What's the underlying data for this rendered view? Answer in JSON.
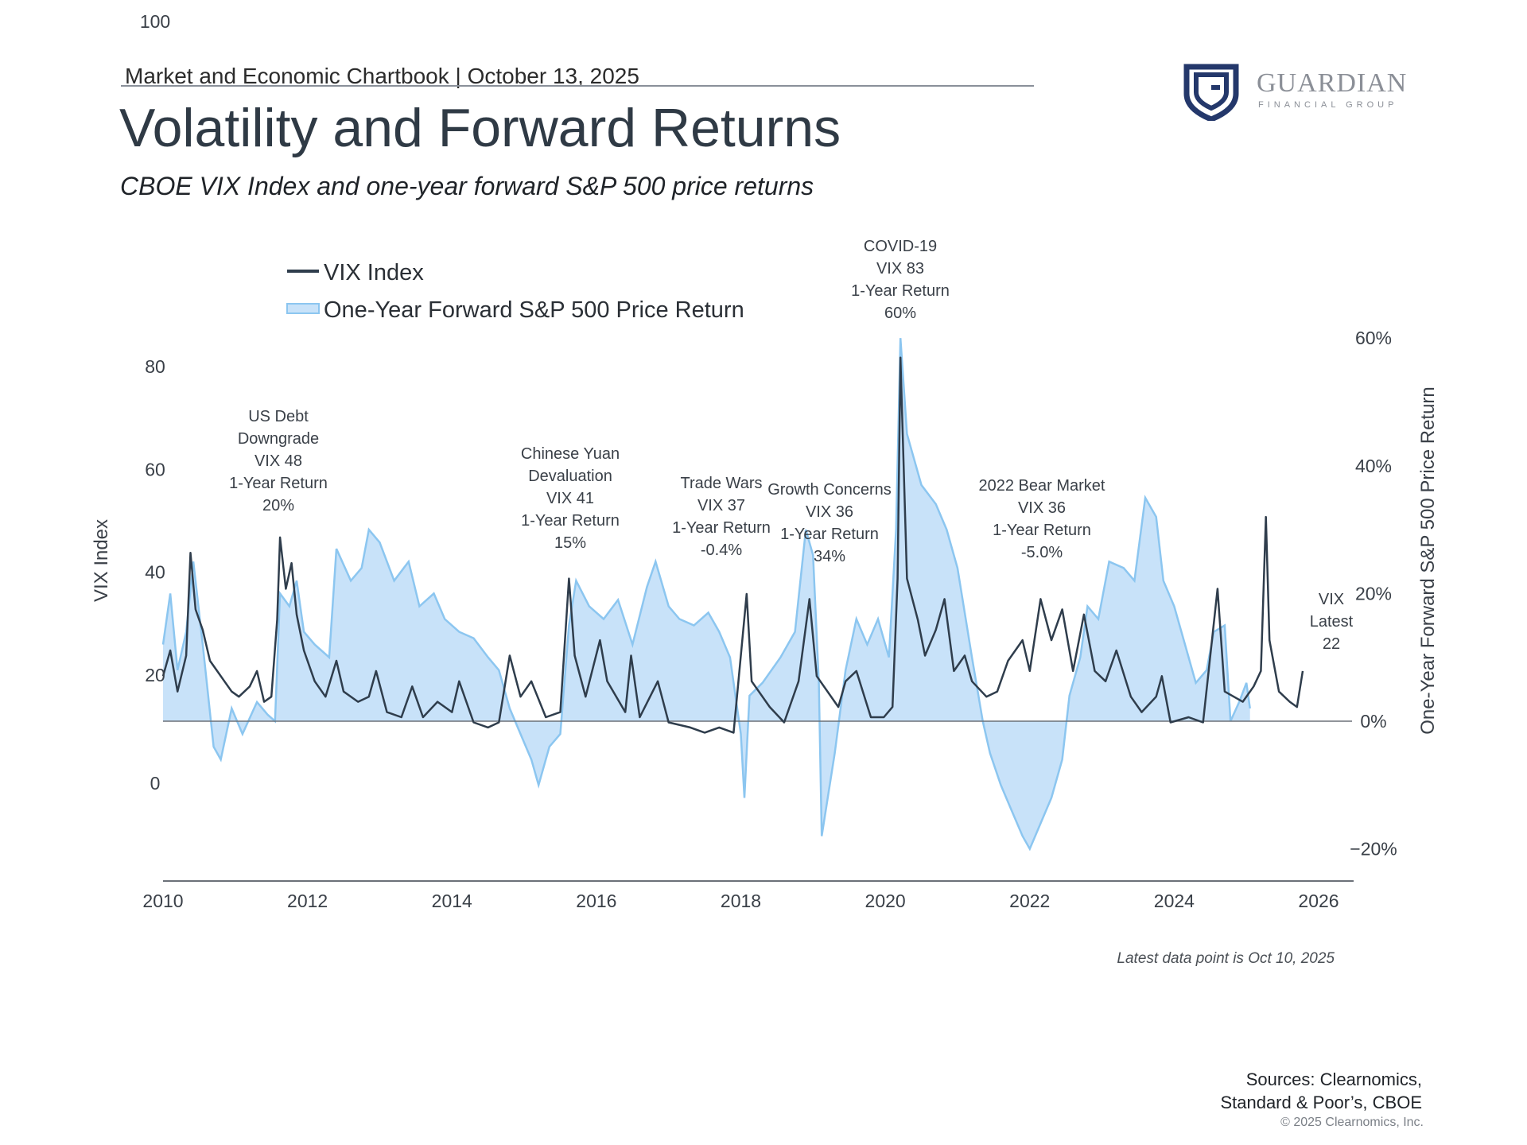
{
  "header": {
    "chartbook": "Market and Economic Chartbook | October 13, 2025",
    "title": "Volatility and Forward Returns",
    "subtitle": "CBOE VIX Index and one-year forward S&P 500 price returns"
  },
  "logo": {
    "word": "GUARDIAN",
    "tagline": "FINANCIAL GROUP",
    "color": "#24386b"
  },
  "footer": {
    "note": "Latest data point is Oct 10, 2025",
    "sources_line1": "Sources: Clearnomics,",
    "sources_line2": "Standard & Poor’s, CBOE",
    "copyright": "© 2025 Clearnomics, Inc."
  },
  "chart_data": {
    "type": "line",
    "title": "Volatility and Forward Returns",
    "subtitle": "CBOE VIX Index and one-year forward S&P 500 price returns",
    "colors": {
      "vix": "#2f3d4c",
      "return_fill": "#c8e2f9",
      "return_line": "#8cc6f0",
      "axis": "#6b7178"
    },
    "legend": {
      "placement": "top-left",
      "items": [
        "VIX Index",
        "One-Year Forward S&P 500 Price Return"
      ]
    },
    "x_axis": {
      "range": [
        2010,
        2026.3
      ],
      "ticks": [
        "2010",
        "2012",
        "2014",
        "2016",
        "2018",
        "2020",
        "2022",
        "2024",
        "2026"
      ]
    },
    "y_left": {
      "label": "VIX Index",
      "range": [
        -20,
        105
      ],
      "ticks": [
        "100",
        "80",
        "60",
        "40",
        "20",
        "0"
      ],
      "tick_values": [
        100,
        80,
        60,
        40,
        20,
        0
      ]
    },
    "y_right": {
      "label": "One-Year Forward S&P 500 Price Return",
      "range": [
        -25,
        65
      ],
      "ticks": [
        "60%",
        "40%",
        "20%",
        "0%",
        "−20%"
      ],
      "tick_values": [
        60,
        40,
        20,
        0,
        -20
      ]
    },
    "series": [
      {
        "name": "VIX Index",
        "axis": "left",
        "points": [
          [
            2010.0,
            21
          ],
          [
            2010.1,
            26
          ],
          [
            2010.2,
            18
          ],
          [
            2010.32,
            25
          ],
          [
            2010.38,
            45
          ],
          [
            2010.45,
            34
          ],
          [
            2010.55,
            30
          ],
          [
            2010.65,
            24
          ],
          [
            2010.75,
            22
          ],
          [
            2010.85,
            20
          ],
          [
            2010.95,
            18
          ],
          [
            2011.05,
            17
          ],
          [
            2011.2,
            19
          ],
          [
            2011.3,
            22
          ],
          [
            2011.4,
            16
          ],
          [
            2011.5,
            17
          ],
          [
            2011.58,
            32
          ],
          [
            2011.62,
            48
          ],
          [
            2011.7,
            38
          ],
          [
            2011.78,
            43
          ],
          [
            2011.85,
            33
          ],
          [
            2011.95,
            26
          ],
          [
            2012.1,
            20
          ],
          [
            2012.25,
            17
          ],
          [
            2012.4,
            24
          ],
          [
            2012.5,
            18
          ],
          [
            2012.7,
            16
          ],
          [
            2012.85,
            17
          ],
          [
            2012.95,
            22
          ],
          [
            2013.1,
            14
          ],
          [
            2013.3,
            13
          ],
          [
            2013.45,
            19
          ],
          [
            2013.6,
            13
          ],
          [
            2013.8,
            16
          ],
          [
            2014.0,
            14
          ],
          [
            2014.1,
            20
          ],
          [
            2014.3,
            12
          ],
          [
            2014.5,
            11
          ],
          [
            2014.65,
            12
          ],
          [
            2014.8,
            25
          ],
          [
            2014.95,
            17
          ],
          [
            2015.1,
            20
          ],
          [
            2015.3,
            13
          ],
          [
            2015.5,
            14
          ],
          [
            2015.62,
            40
          ],
          [
            2015.7,
            25
          ],
          [
            2015.85,
            17
          ],
          [
            2016.05,
            28
          ],
          [
            2016.15,
            20
          ],
          [
            2016.4,
            14
          ],
          [
            2016.48,
            25
          ],
          [
            2016.6,
            13
          ],
          [
            2016.85,
            20
          ],
          [
            2017.0,
            12
          ],
          [
            2017.3,
            11
          ],
          [
            2017.5,
            10
          ],
          [
            2017.7,
            11
          ],
          [
            2017.9,
            10
          ],
          [
            2018.08,
            37
          ],
          [
            2018.15,
            20
          ],
          [
            2018.4,
            15
          ],
          [
            2018.6,
            12
          ],
          [
            2018.8,
            20
          ],
          [
            2018.95,
            36
          ],
          [
            2019.05,
            21
          ],
          [
            2019.35,
            15
          ],
          [
            2019.45,
            20
          ],
          [
            2019.6,
            22
          ],
          [
            2019.8,
            13
          ],
          [
            2019.98,
            13
          ],
          [
            2020.1,
            15
          ],
          [
            2020.17,
            40
          ],
          [
            2020.21,
            83
          ],
          [
            2020.3,
            40
          ],
          [
            2020.45,
            32
          ],
          [
            2020.55,
            25
          ],
          [
            2020.7,
            30
          ],
          [
            2020.82,
            36
          ],
          [
            2020.95,
            22
          ],
          [
            2021.1,
            25
          ],
          [
            2021.2,
            20
          ],
          [
            2021.4,
            17
          ],
          [
            2021.55,
            18
          ],
          [
            2021.7,
            24
          ],
          [
            2021.9,
            28
          ],
          [
            2022.0,
            22
          ],
          [
            2022.15,
            36
          ],
          [
            2022.3,
            28
          ],
          [
            2022.45,
            34
          ],
          [
            2022.6,
            22
          ],
          [
            2022.75,
            33
          ],
          [
            2022.9,
            22
          ],
          [
            2023.05,
            20
          ],
          [
            2023.2,
            26
          ],
          [
            2023.4,
            17
          ],
          [
            2023.55,
            14
          ],
          [
            2023.75,
            17
          ],
          [
            2023.83,
            21
          ],
          [
            2023.95,
            12
          ],
          [
            2024.2,
            13
          ],
          [
            2024.4,
            12
          ],
          [
            2024.6,
            38
          ],
          [
            2024.7,
            18
          ],
          [
            2024.95,
            16
          ],
          [
            2025.1,
            19
          ],
          [
            2025.2,
            22
          ],
          [
            2025.27,
            52
          ],
          [
            2025.32,
            28
          ],
          [
            2025.45,
            18
          ],
          [
            2025.6,
            16
          ],
          [
            2025.7,
            15
          ],
          [
            2025.78,
            22
          ]
        ]
      },
      {
        "name": "One-Year Forward S&P 500 Price Return",
        "axis": "right",
        "points": [
          [
            2010.0,
            12
          ],
          [
            2010.1,
            20
          ],
          [
            2010.2,
            8
          ],
          [
            2010.32,
            14
          ],
          [
            2010.42,
            25
          ],
          [
            2010.55,
            12
          ],
          [
            2010.7,
            -4
          ],
          [
            2010.8,
            -6
          ],
          [
            2010.95,
            2
          ],
          [
            2011.1,
            -2
          ],
          [
            2011.3,
            3
          ],
          [
            2011.45,
            1
          ],
          [
            2011.55,
            0
          ],
          [
            2011.62,
            20
          ],
          [
            2011.75,
            18
          ],
          [
            2011.85,
            22
          ],
          [
            2011.95,
            14
          ],
          [
            2012.1,
            12
          ],
          [
            2012.3,
            10
          ],
          [
            2012.4,
            27
          ],
          [
            2012.6,
            22
          ],
          [
            2012.75,
            24
          ],
          [
            2012.85,
            30
          ],
          [
            2013.0,
            28
          ],
          [
            2013.2,
            22
          ],
          [
            2013.4,
            25
          ],
          [
            2013.55,
            18
          ],
          [
            2013.75,
            20
          ],
          [
            2013.9,
            16
          ],
          [
            2014.1,
            14
          ],
          [
            2014.3,
            13
          ],
          [
            2014.5,
            10
          ],
          [
            2014.65,
            8
          ],
          [
            2014.8,
            2
          ],
          [
            2014.95,
            -2
          ],
          [
            2015.1,
            -6
          ],
          [
            2015.2,
            -10
          ],
          [
            2015.35,
            -4
          ],
          [
            2015.5,
            -2
          ],
          [
            2015.62,
            15
          ],
          [
            2015.72,
            22
          ],
          [
            2015.9,
            18
          ],
          [
            2016.1,
            16
          ],
          [
            2016.3,
            19
          ],
          [
            2016.5,
            12
          ],
          [
            2016.7,
            21
          ],
          [
            2016.82,
            25
          ],
          [
            2017.0,
            18
          ],
          [
            2017.15,
            16
          ],
          [
            2017.35,
            15
          ],
          [
            2017.55,
            17
          ],
          [
            2017.7,
            14
          ],
          [
            2017.85,
            10
          ],
          [
            2018.0,
            -2
          ],
          [
            2018.05,
            -12
          ],
          [
            2018.12,
            4
          ],
          [
            2018.3,
            6
          ],
          [
            2018.55,
            10
          ],
          [
            2018.75,
            14
          ],
          [
            2018.9,
            30
          ],
          [
            2019.0,
            26
          ],
          [
            2019.08,
            6
          ],
          [
            2019.12,
            -18
          ],
          [
            2019.3,
            -5
          ],
          [
            2019.45,
            8
          ],
          [
            2019.6,
            16
          ],
          [
            2019.75,
            12
          ],
          [
            2019.9,
            16
          ],
          [
            2020.05,
            10
          ],
          [
            2020.15,
            30
          ],
          [
            2020.21,
            60
          ],
          [
            2020.3,
            45
          ],
          [
            2020.5,
            37
          ],
          [
            2020.7,
            34
          ],
          [
            2020.85,
            30
          ],
          [
            2021.0,
            24
          ],
          [
            2021.2,
            10
          ],
          [
            2021.35,
            0
          ],
          [
            2021.45,
            -5
          ],
          [
            2021.6,
            -10
          ],
          [
            2021.75,
            -14
          ],
          [
            2021.9,
            -18
          ],
          [
            2022.0,
            -20
          ],
          [
            2022.15,
            -16
          ],
          [
            2022.3,
            -12
          ],
          [
            2022.45,
            -6
          ],
          [
            2022.55,
            4
          ],
          [
            2022.7,
            10
          ],
          [
            2022.8,
            18
          ],
          [
            2022.95,
            16
          ],
          [
            2023.1,
            25
          ],
          [
            2023.3,
            24
          ],
          [
            2023.45,
            22
          ],
          [
            2023.6,
            35
          ],
          [
            2023.75,
            32
          ],
          [
            2023.85,
            22
          ],
          [
            2024.0,
            18
          ],
          [
            2024.15,
            12
          ],
          [
            2024.3,
            6
          ],
          [
            2024.45,
            8
          ],
          [
            2024.55,
            14
          ],
          [
            2024.7,
            15
          ],
          [
            2024.78,
            0
          ],
          [
            2024.9,
            3
          ],
          [
            2025.0,
            6
          ],
          [
            2025.05,
            2
          ]
        ]
      }
    ],
    "annotations": [
      {
        "lines": [
          "US Debt",
          "Downgrade",
          "VIX 48",
          "1-Year Return",
          "20%"
        ]
      },
      {
        "lines": [
          "Chinese Yuan",
          "Devaluation",
          "VIX 41",
          "1-Year Return",
          "15%"
        ]
      },
      {
        "lines": [
          "Trade Wars",
          "VIX 37",
          "1-Year Return",
          "-0.4%"
        ]
      },
      {
        "lines": [
          "Growth Concerns",
          "VIX 36",
          "1-Year Return",
          "34%"
        ]
      },
      {
        "lines": [
          "COVID-19",
          "VIX 83",
          "1-Year Return",
          "60%"
        ]
      },
      {
        "lines": [
          "2022 Bear Market",
          "VIX 36",
          "1-Year Return",
          "-5.0%"
        ]
      },
      {
        "lines": [
          "VIX",
          "Latest",
          "22"
        ]
      }
    ]
  }
}
